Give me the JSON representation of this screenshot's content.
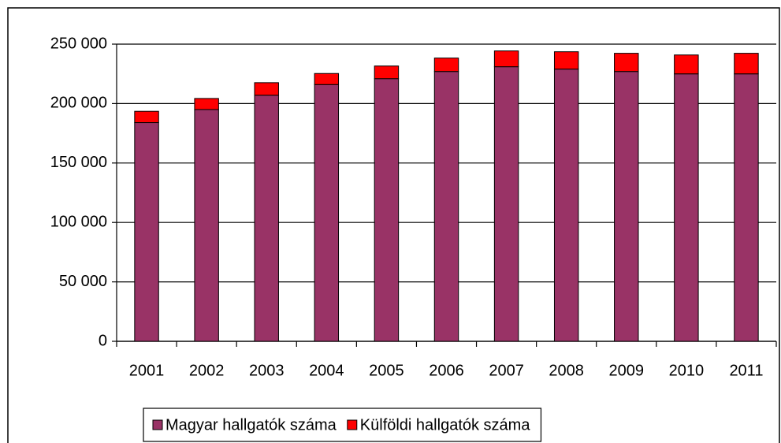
{
  "chart_data": {
    "type": "stacked_bar",
    "categories": [
      "2001",
      "2002",
      "2003",
      "2004",
      "2005",
      "2006",
      "2007",
      "2008",
      "2009",
      "2010",
      "2011"
    ],
    "series": [
      {
        "name": "Magyar hallgatók száma",
        "color": "#993366",
        "values": [
          184000,
          195000,
          207000,
          216000,
          221000,
          227000,
          231000,
          229000,
          227000,
          225000,
          225000
        ]
      },
      {
        "name": "Külföldi hallgatók száma",
        "color": "#ff0000",
        "values": [
          9500,
          9300,
          10600,
          9300,
          10600,
          11300,
          13300,
          14600,
          15300,
          15900,
          17300
        ]
      }
    ],
    "ylim": [
      0,
      250000
    ],
    "yticks": [
      0,
      {
        "value": 50000,
        "label": "50 000"
      },
      {
        "value": 100000,
        "label": "100 000"
      },
      {
        "value": 150000,
        "label": "150 000"
      },
      {
        "value": 200000,
        "label": "200 000"
      },
      {
        "value": 250000,
        "label": "250 000"
      }
    ],
    "grid": true,
    "legend": "bottom"
  }
}
